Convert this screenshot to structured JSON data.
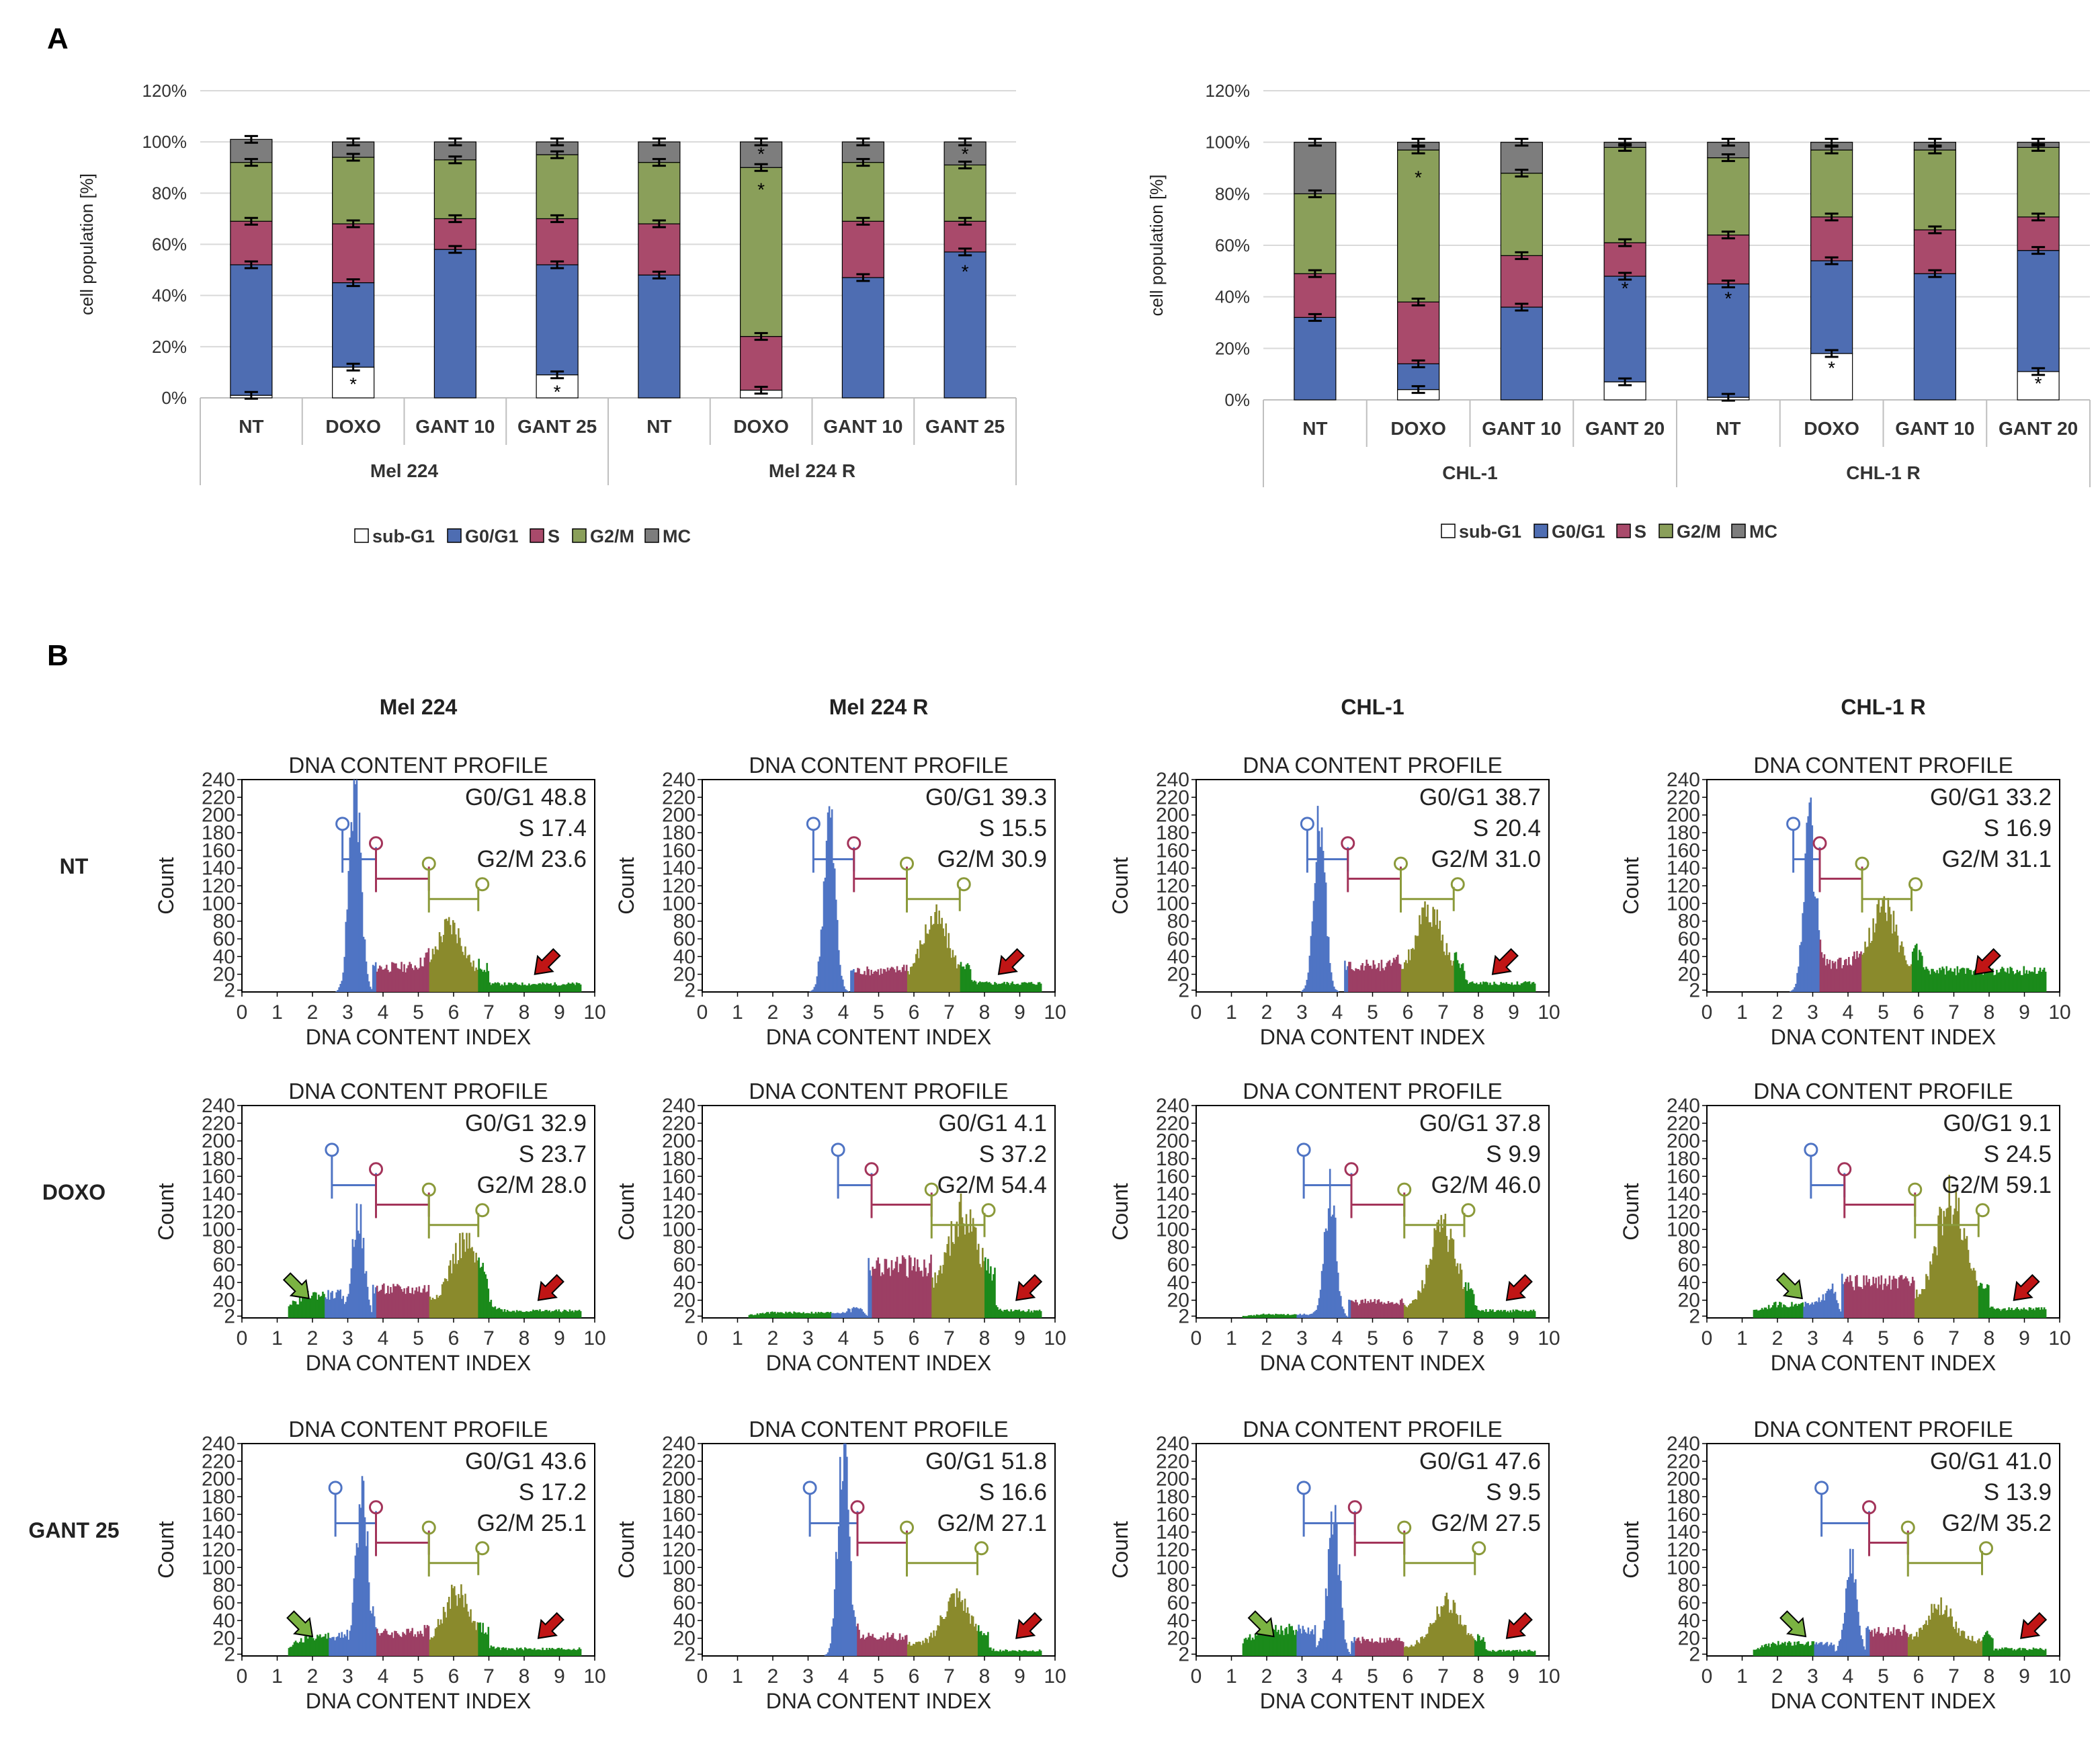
{
  "figure": {
    "panel_a_label": "A",
    "panel_b_label": "B"
  },
  "colors": {
    "subG1": "#ffffff",
    "G0G1": "#4e6db2",
    "S": "#a94a6b",
    "G2M": "#8a9f5a",
    "MC": "#7d7d7d",
    "hist_blue": "#4f74c4",
    "hist_magenta": "#9c3f64",
    "hist_olive": "#8a8a2c",
    "hist_green": "#1b8a1b",
    "gate_blue": "#4f74c4",
    "gate_magenta": "#a3345a",
    "gate_olive": "#8b9a3a",
    "arrow_red": "#c01515",
    "arrow_green": "#7bb342"
  },
  "chart_data": [
    {
      "id": "stacked-left",
      "type": "bar",
      "stacked": true,
      "ylabel": "cell population [%]",
      "ylim": [
        0,
        120
      ],
      "yticks": [
        "0%",
        "20%",
        "40%",
        "60%",
        "80%",
        "100%",
        "120%"
      ],
      "categories": [
        "NT",
        "DOXO",
        "GANT 10",
        "GANT 25",
        "NT",
        "DOXO",
        "GANT 10",
        "GANT 25"
      ],
      "groups": [
        {
          "label": "Mel 224",
          "span": [
            0,
            3
          ]
        },
        {
          "label": "Mel 224 R",
          "span": [
            4,
            7
          ]
        }
      ],
      "series": [
        {
          "name": "sub-G1",
          "values": [
            1,
            12,
            0,
            9,
            0,
            3,
            0,
            0
          ]
        },
        {
          "name": "G0/G1",
          "values": [
            51,
            33,
            58,
            43,
            48,
            0,
            47,
            57
          ]
        },
        {
          "name": "S",
          "values": [
            17,
            23,
            12,
            18,
            20,
            21,
            22,
            12
          ]
        },
        {
          "name": "G2/M",
          "values": [
            23,
            26,
            23,
            25,
            24,
            66,
            23,
            22
          ]
        },
        {
          "name": "MC",
          "values": [
            9,
            6,
            7,
            5,
            8,
            10,
            8,
            9
          ]
        }
      ],
      "asterisks": [
        {
          "bar": 1,
          "value": 6
        },
        {
          "bar": 3,
          "value": 3
        },
        {
          "bar": 5,
          "value": 82
        },
        {
          "bar": 5,
          "value": 96
        },
        {
          "bar": 7,
          "value": 50
        },
        {
          "bar": 7,
          "value": 96
        }
      ],
      "legend": [
        "sub-G1",
        "G0/G1",
        "S",
        "G2/M",
        "MC"
      ]
    },
    {
      "id": "stacked-right",
      "type": "bar",
      "stacked": true,
      "ylabel": "cell population [%]",
      "ylim": [
        0,
        120
      ],
      "yticks": [
        "0%",
        "20%",
        "40%",
        "60%",
        "80%",
        "100%",
        "120%"
      ],
      "categories": [
        "NT",
        "DOXO",
        "GANT 10",
        "GANT 20",
        "NT",
        "DOXO",
        "GANT 10",
        "GANT 20"
      ],
      "groups": [
        {
          "label": "CHL-1",
          "span": [
            0,
            3
          ]
        },
        {
          "label": "CHL-1 R",
          "span": [
            4,
            7
          ]
        }
      ],
      "series": [
        {
          "name": "sub-G1",
          "values": [
            0,
            4,
            0,
            7,
            1,
            18,
            0,
            11
          ]
        },
        {
          "name": "G0/G1",
          "values": [
            32,
            10,
            36,
            41,
            44,
            36,
            49,
            47
          ]
        },
        {
          "name": "S",
          "values": [
            17,
            24,
            20,
            13,
            19,
            17,
            17,
            13
          ]
        },
        {
          "name": "G2/M",
          "values": [
            31,
            59,
            32,
            37,
            30,
            26,
            31,
            27
          ]
        },
        {
          "name": "MC",
          "values": [
            20,
            3,
            12,
            2,
            6,
            3,
            3,
            2
          ]
        }
      ],
      "asterisks": [
        {
          "bar": 1,
          "value": 87
        },
        {
          "bar": 3,
          "value": 44
        },
        {
          "bar": 4,
          "value": 40
        },
        {
          "bar": 5,
          "value": 13
        },
        {
          "bar": 7,
          "value": 7
        }
      ],
      "legend": [
        "sub-G1",
        "G0/G1",
        "S",
        "G2/M",
        "MC"
      ]
    },
    {
      "id": "histogram-grid",
      "type": "area",
      "title": "DNA CONTENT PROFILE",
      "xlabel": "DNA CONTENT INDEX",
      "ylabel": "Count",
      "xlim": [
        0,
        10
      ],
      "ylim": [
        0,
        240
      ],
      "xticks": [
        "0",
        "1",
        "2",
        "3",
        "4",
        "5",
        "6",
        "7",
        "8",
        "9",
        "10"
      ],
      "yticks": [
        "2",
        "20",
        "40",
        "60",
        "80",
        "100",
        "120",
        "140",
        "160",
        "180",
        "200",
        "220",
        "240"
      ],
      "columns": [
        "Mel 224",
        "Mel 224 R",
        "CHL-1",
        "CHL-1 R"
      ],
      "rows": [
        "NT",
        "DOXO",
        "GANT 25"
      ],
      "panels": [
        {
          "g0g1": "G0/G1 48.8",
          "s": "S 17.4",
          "g2m": "G2/M 23.6",
          "sub": 0,
          "g1": 3.2,
          "h1": 240,
          "g2": 5.9,
          "h2": 58,
          "sh": 28,
          "tail": 9,
          "gate": [
            3.0,
            3.8,
            5.3,
            6.7
          ],
          "green_arrow": false,
          "red_arrow": 8.3
        },
        {
          "g0g1": "G0/G1 39.3",
          "s": "S 15.5",
          "g2m": "G2/M 30.9",
          "sub": 0,
          "g1": 3.6,
          "h1": 200,
          "g2": 6.6,
          "h2": 68,
          "sh": 24,
          "tail": 10,
          "gate": [
            3.3,
            4.3,
            5.8,
            7.3
          ],
          "green_arrow": false,
          "red_arrow": 8.4
        },
        {
          "g0g1": "G0/G1 38.7",
          "s": "S 20.4",
          "g2m": "G2/M 31.0",
          "sub": 0,
          "g1": 3.5,
          "h1": 185,
          "g2": 6.6,
          "h2": 70,
          "sh": 30,
          "tail": 10,
          "gate": [
            3.3,
            4.3,
            5.8,
            7.3
          ],
          "green_arrow": false,
          "red_arrow": 8.4
        },
        {
          "g0g1": "G0/G1 33.2",
          "s": "S 16.9",
          "g2m": "G2/M 31.1",
          "sub": 0,
          "g1": 2.9,
          "h1": 190,
          "g2": 5.0,
          "h2": 75,
          "sh": 32,
          "tail": 24,
          "gate": [
            2.6,
            3.2,
            4.4,
            5.8
          ],
          "green_arrow": false,
          "red_arrow": 7.6
        },
        {
          "g0g1": "G0/G1 32.9",
          "s": "S 23.7",
          "g2m": "G2/M 28.0",
          "sub": 26,
          "g1": 3.3,
          "h1": 115,
          "g2": 6.3,
          "h2": 65,
          "sh": 32,
          "tail": 8,
          "gate": [
            2.7,
            3.8,
            5.3,
            6.7
          ],
          "green_arrow": 1.9,
          "red_arrow": 8.4
        },
        {
          "g0g1": "G0/G1 4.1",
          "s": "S 37.2",
          "g2m": "G2/M 54.4",
          "sub": 6,
          "g1": 4.4,
          "h1": 12,
          "g2": 7.4,
          "h2": 85,
          "sh": 58,
          "tail": 8,
          "gate": [
            4.0,
            4.8,
            6.5,
            8.0
          ],
          "green_arrow": false,
          "red_arrow": 8.9
        },
        {
          "g0g1": "G0/G1 37.8",
          "s": "S 9.9",
          "g2m": "G2/M 46.0",
          "sub": 4,
          "g1": 3.8,
          "h1": 140,
          "g2": 7.0,
          "h2": 90,
          "sh": 18,
          "tail": 8,
          "gate": [
            3.2,
            4.4,
            5.9,
            7.6
          ],
          "green_arrow": false,
          "red_arrow": 8.8
        },
        {
          "g0g1": "G0/G1 9.1",
          "s": "S 24.5",
          "g2m": "G2/M 59.1",
          "sub": 15,
          "g1": 3.5,
          "h1": 35,
          "g2": 6.9,
          "h2": 110,
          "sh": 40,
          "tail": 10,
          "gate": [
            3.1,
            3.9,
            5.9,
            7.7
          ],
          "green_arrow": 2.7,
          "red_arrow": 8.7
        },
        {
          "g0g1": "G0/G1 43.6",
          "s": "S 17.2",
          "g2m": "G2/M 25.1",
          "sub": 22,
          "g1": 3.4,
          "h1": 190,
          "g2": 6.1,
          "h2": 55,
          "sh": 26,
          "tail": 8,
          "gate": [
            2.8,
            3.8,
            5.3,
            6.7
          ],
          "green_arrow": 2.0,
          "red_arrow": 8.4
        },
        {
          "g0g1": "G0/G1 51.8",
          "s": "S 16.6",
          "g2m": "G2/M 27.1",
          "sub": 0,
          "g1": 4.0,
          "h1": 235,
          "g2": 7.2,
          "h2": 52,
          "sh": 22,
          "tail": 6,
          "gate": [
            3.2,
            4.4,
            5.8,
            7.8
          ],
          "green_arrow": false,
          "red_arrow": 8.9
        },
        {
          "g0g1": "G0/G1 47.6",
          "s": "S 9.5",
          "g2m": "G2/M 27.5",
          "sub": 30,
          "g1": 3.9,
          "h1": 150,
          "g2": 7.1,
          "h2": 50,
          "sh": 18,
          "tail": 6,
          "gate": [
            3.2,
            4.5,
            5.9,
            7.9
          ],
          "green_arrow": 2.2,
          "red_arrow": 8.8
        },
        {
          "g0g1": "G0/G1 41.0",
          "s": "S 13.9",
          "g2m": "G2/M 35.2",
          "sub": 14,
          "g1": 4.1,
          "h1": 110,
          "g2": 6.6,
          "h2": 38,
          "sh": 28,
          "tail": 8,
          "gate": [
            3.4,
            4.6,
            5.7,
            7.8
          ],
          "green_arrow": 2.8,
          "red_arrow": 8.9
        }
      ]
    }
  ]
}
